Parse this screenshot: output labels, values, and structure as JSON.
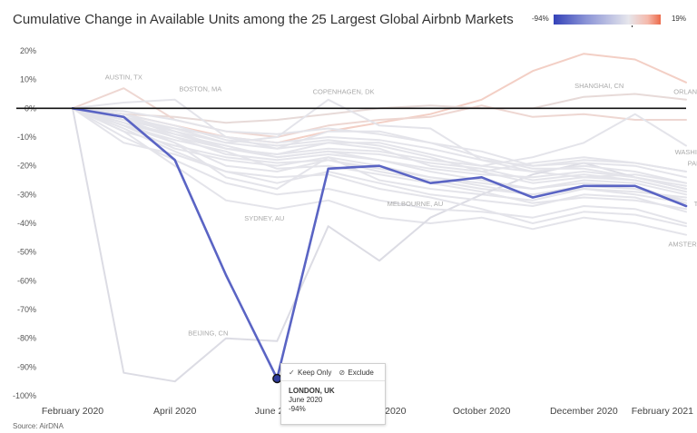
{
  "title": "Cumulative Change in Available Units among the 25 Largest Global Airbnb Markets",
  "legend": {
    "min_label": "-94%",
    "max_label": "19%",
    "colors": [
      "#3442b8",
      "#e6e6ec",
      "#ec6a4a"
    ]
  },
  "source": "Source: AirDNA",
  "tooltip": {
    "keep_only": "Keep Only",
    "exclude": "Exclude",
    "city": "LONDON, UK",
    "date": "June 2020",
    "value": "-94%"
  },
  "chart_data": {
    "type": "line",
    "title": "Cumulative Change in Available Units among the 25 Largest Global Airbnb Markets",
    "xlabel": "",
    "ylabel": "",
    "ylim": [
      -100,
      20
    ],
    "yticks": [
      20,
      10,
      0,
      -10,
      -20,
      -30,
      -40,
      -50,
      -60,
      -70,
      -80,
      -90,
      -100
    ],
    "ytick_labels": [
      "20%",
      "10%",
      "0%",
      "-10%",
      "-20%",
      "-30%",
      "-40%",
      "-50%",
      "-60%",
      "-70%",
      "-80%",
      "-90%",
      "-100%"
    ],
    "x": [
      "February 2020",
      "March 2020",
      "April 2020",
      "May 2020",
      "June 2020",
      "July 2020",
      "August 2020",
      "September 2020",
      "October 2020",
      "November 2020",
      "December 2020",
      "January 2021",
      "February 2021"
    ],
    "xtick_labels": [
      {
        "index": 0,
        "label": "February 2020"
      },
      {
        "index": 2,
        "label": "April 2020"
      },
      {
        "index": 4,
        "label": "June 2020"
      },
      {
        "index": 6,
        "label": "August 2020"
      },
      {
        "index": 8,
        "label": "October 2020"
      },
      {
        "index": 10,
        "label": "December 2020"
      },
      {
        "index": 12,
        "label": "February 2021"
      }
    ],
    "grid": false,
    "reference_line": 0,
    "highlight_series": "LONDON, UK",
    "series": [
      {
        "name": "LONDON, UK",
        "values": [
          0,
          -3,
          -18,
          -58,
          -94,
          -21,
          -20,
          -26,
          -24,
          -31,
          -27,
          -27,
          -34
        ],
        "color": "#5a64c4"
      },
      {
        "name": "SHANGHAI, CN",
        "values": [
          0,
          -2,
          -6,
          -10,
          -12,
          -8,
          -5,
          -2,
          3,
          13,
          19,
          17,
          9
        ],
        "color": "#f3cfc5"
      },
      {
        "name": "ORLANDO, FL",
        "values": [
          0,
          -2,
          -3,
          -5,
          -4,
          -2,
          0,
          1,
          0,
          0,
          4,
          5,
          3
        ],
        "color": "#e7dad8"
      },
      {
        "name": "AUSTIN, TX",
        "values": [
          0,
          7,
          -4,
          -8,
          -10,
          -6,
          -4,
          -3,
          1,
          -3,
          -2,
          -4,
          -4
        ],
        "color": "#eed7d2"
      },
      {
        "name": "BOSTON, MA",
        "values": [
          0,
          2,
          3,
          -10,
          -14,
          -8,
          -8,
          -12,
          -15,
          -20,
          -18,
          -19,
          -22
        ],
        "color": "#e4e4ea"
      },
      {
        "name": "COPENHAGEN, DK",
        "values": [
          0,
          -4,
          -8,
          -12,
          -10,
          3,
          -6,
          -7,
          -18,
          -22,
          -24,
          -23,
          -26
        ],
        "color": "#e4e4ea"
      },
      {
        "name": "WASHINGTON DC",
        "values": [
          0,
          -3,
          -7,
          -12,
          -14,
          -12,
          -12,
          -16,
          -20,
          -17,
          -12,
          -2,
          -13
        ],
        "color": "#e4e4ea"
      },
      {
        "name": "PARIS, FR",
        "values": [
          0,
          -4,
          -10,
          -14,
          -16,
          -12,
          -14,
          -20,
          -22,
          -19,
          -17,
          -19,
          -22
        ],
        "color": "#e4e4ea"
      },
      {
        "name": "MELBOURNE, AU",
        "values": [
          0,
          -6,
          -12,
          -20,
          -22,
          -18,
          -22,
          -25,
          -28,
          -30,
          -28,
          -29,
          -31
        ],
        "color": "#e4e4ea"
      },
      {
        "name": "SYDNEY, AU",
        "values": [
          0,
          -5,
          -12,
          -24,
          -28,
          -17,
          -25,
          -28,
          -30,
          -32,
          -28,
          -30,
          -33
        ],
        "color": "#e4e4ea"
      },
      {
        "name": "AMSTERDAM, NL",
        "values": [
          0,
          -8,
          -20,
          -32,
          -35,
          -32,
          -38,
          -40,
          -38,
          -42,
          -38,
          -40,
          -44
        ],
        "color": "#e4e4ea"
      },
      {
        "name": "BEIJING, CN",
        "values": [
          0,
          -92,
          -95,
          -80,
          -81,
          -41,
          -53,
          -38,
          -30,
          -23,
          -19,
          -24,
          -28
        ],
        "color": "#dcdce4"
      },
      {
        "name": "",
        "values": [
          0,
          -6,
          -14,
          -18,
          -20,
          -17,
          -20,
          -24,
          -26,
          -28,
          -25,
          -26,
          -30
        ],
        "color": "#e4e4ea"
      },
      {
        "name": "",
        "values": [
          0,
          -2,
          -8,
          -14,
          -16,
          -14,
          -15,
          -18,
          -20,
          -22,
          -20,
          -22,
          -26
        ],
        "color": "#e4e4ea"
      },
      {
        "name": "",
        "values": [
          0,
          -5,
          -10,
          -16,
          -18,
          -16,
          -18,
          -21,
          -23,
          -24,
          -22,
          -24,
          -28
        ],
        "color": "#e4e4ea"
      },
      {
        "name": "",
        "values": [
          0,
          -3,
          -9,
          -13,
          -17,
          -15,
          -16,
          -19,
          -21,
          -25,
          -23,
          -25,
          -29
        ],
        "color": "#e4e4ea"
      },
      {
        "name": "",
        "values": [
          0,
          -7,
          -15,
          -22,
          -26,
          -22,
          -26,
          -30,
          -32,
          -34,
          -30,
          -31,
          -36
        ],
        "color": "#e4e4ea"
      },
      {
        "name": "",
        "values": [
          0,
          -10,
          -18,
          -26,
          -30,
          -28,
          -32,
          -35,
          -36,
          -38,
          -34,
          -35,
          -40
        ],
        "color": "#e4e4ea"
      },
      {
        "name": "",
        "values": [
          0,
          -4,
          -7,
          -10,
          -12,
          -10,
          -11,
          -14,
          -18,
          -20,
          -19,
          -20,
          -24
        ],
        "color": "#e4e4ea"
      },
      {
        "name": "",
        "values": [
          0,
          -12,
          -16,
          -22,
          -24,
          -23,
          -28,
          -31,
          -35,
          -40,
          -36,
          -37,
          -41
        ],
        "color": "#e4e4ea"
      },
      {
        "name": "",
        "values": [
          0,
          -1,
          -4,
          -8,
          -9,
          -7,
          -9,
          -12,
          -17,
          -21,
          -21,
          -24,
          -27
        ],
        "color": "#e4e4ea"
      },
      {
        "name": "",
        "values": [
          0,
          -8,
          -13,
          -17,
          -19,
          -18,
          -21,
          -24,
          -27,
          -30,
          -27,
          -28,
          -32
        ],
        "color": "#e4e4ea"
      },
      {
        "name": "",
        "values": [
          0,
          -6,
          -11,
          -15,
          -21,
          -20,
          -23,
          -26,
          -29,
          -33,
          -31,
          -32,
          -35
        ],
        "color": "#e4e4ea"
      },
      {
        "name": "",
        "values": [
          0,
          -2,
          -6,
          -11,
          -13,
          -11,
          -13,
          -17,
          -22,
          -26,
          -24,
          -25,
          -29
        ],
        "color": "#e4e4ea"
      },
      {
        "name": "TOKYO, JP",
        "values": [
          0,
          -5,
          -9,
          -14,
          -17,
          -15,
          -18,
          -22,
          -25,
          -28,
          -26,
          -27,
          -33
        ],
        "color": "#e4e4ea"
      }
    ],
    "series_labels": [
      {
        "name": "AUSTIN, TX",
        "index": 1,
        "value": 10,
        "anchor": "middle"
      },
      {
        "name": "BOSTON, MA",
        "index": 2.5,
        "value": 6,
        "anchor": "middle"
      },
      {
        "name": "COPENHAGEN, DK",
        "index": 5.3,
        "value": 5,
        "anchor": "middle"
      },
      {
        "name": "SHANGHAI, CN",
        "index": 10.3,
        "value": 7,
        "anchor": "middle"
      },
      {
        "name": "ORLANDO, FL",
        "index": 12.2,
        "value": 5,
        "anchor": "middle"
      },
      {
        "name": "WASHINGTON DC",
        "index": 12.35,
        "value": -16,
        "anchor": "middle"
      },
      {
        "name": "PARIS, FR",
        "index": 12.35,
        "value": -20,
        "anchor": "middle"
      },
      {
        "name": "SYDNEY, AU",
        "index": 3.75,
        "value": -39,
        "anchor": "middle"
      },
      {
        "name": "MELBOURNE, AU",
        "index": 6.7,
        "value": -34,
        "anchor": "middle"
      },
      {
        "name": "TOKYO, JP",
        "index": 12.5,
        "value": -34,
        "anchor": "middle"
      },
      {
        "name": "AMSTERDAM, NL",
        "index": 12.2,
        "value": -48,
        "anchor": "middle"
      },
      {
        "name": "BEIJING, CN",
        "index": 2.65,
        "value": -79,
        "anchor": "middle"
      }
    ]
  }
}
